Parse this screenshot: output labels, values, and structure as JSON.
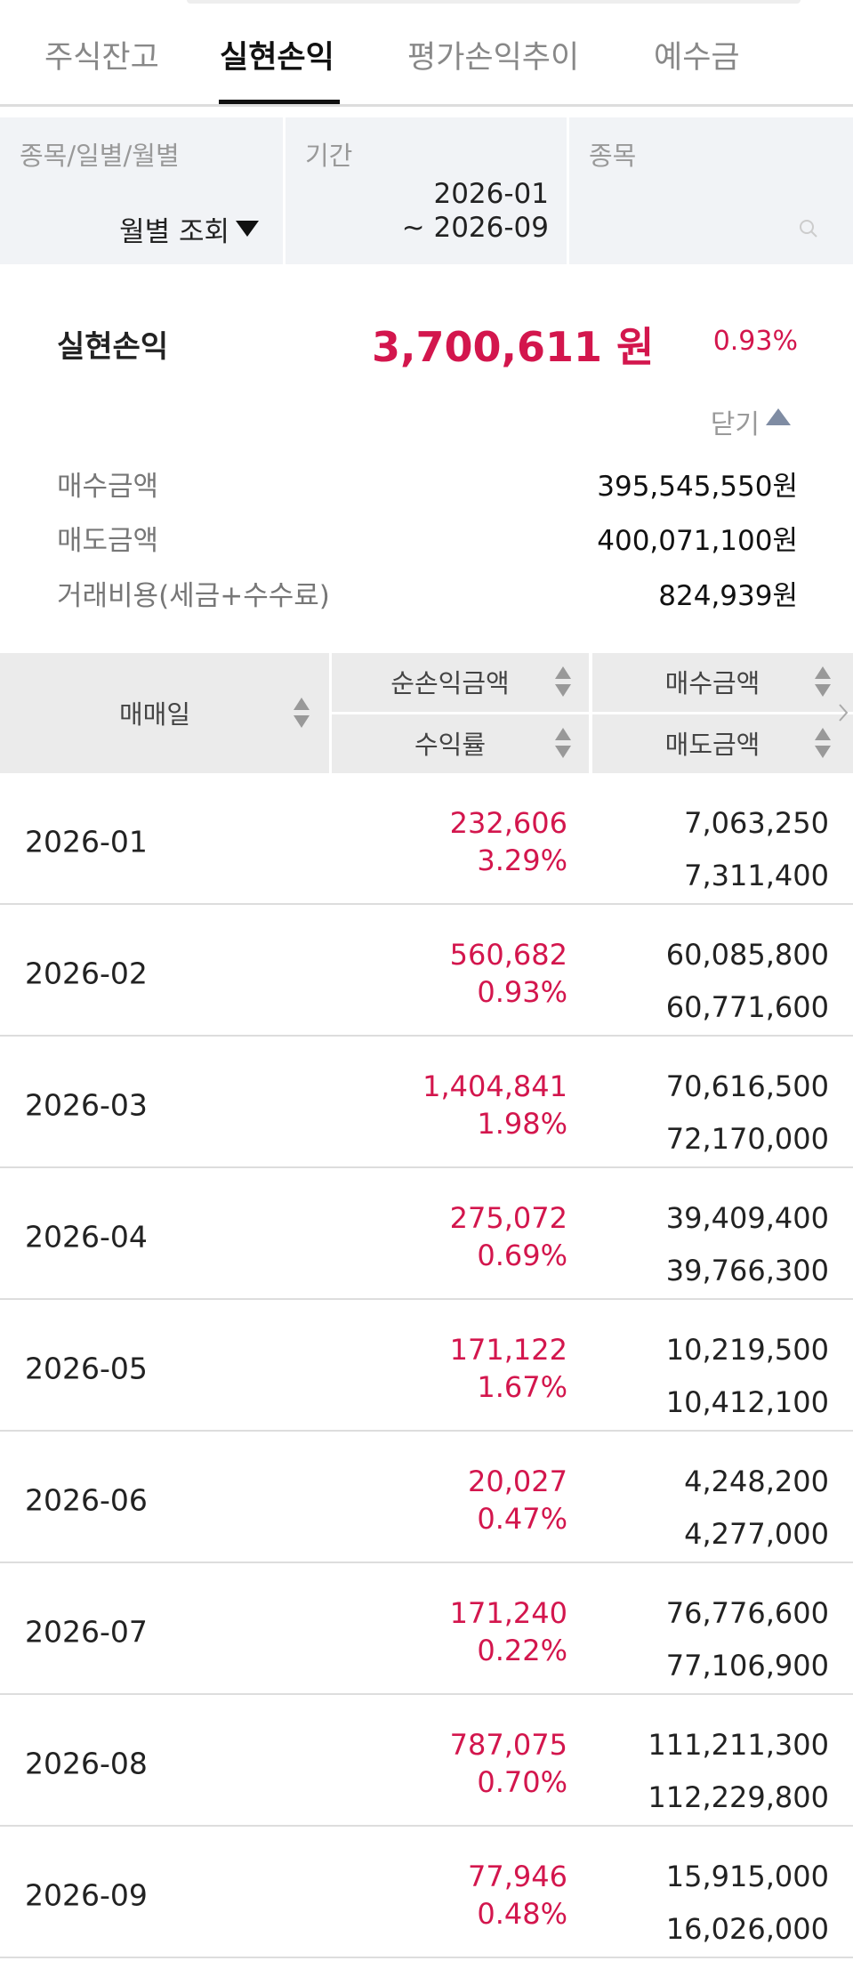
{
  "tabs": [
    "주식잔고",
    "실현손익",
    "평가손익추이",
    "예수금"
  ],
  "filters": {
    "type": {
      "label": "종목/일별/월별",
      "value": "월별 조회"
    },
    "period": {
      "label": "기간",
      "start": "2026-01",
      "end": "~ 2026-09"
    },
    "stock": {
      "label": "종목"
    }
  },
  "summary": {
    "label": "실현손익",
    "amount": "3,700,611 원",
    "rate": "0.93%",
    "toggle": "닫기",
    "details": [
      {
        "label": "매수금액",
        "value": "395,545,550원"
      },
      {
        "label": "매도금액",
        "value": "400,071,100원"
      },
      {
        "label": "거래비용(세금+수수료)",
        "value": "824,939원"
      }
    ]
  },
  "table": {
    "headers": {
      "date": "매매일",
      "profit": "순손익금액",
      "rate": "수익률",
      "buy": "매수금액",
      "sell": "매도금액"
    },
    "rows": [
      [
        "2026-01",
        "232,606",
        "3.29%",
        "7,063,250",
        "7,311,400"
      ],
      [
        "2026-02",
        "560,682",
        "0.93%",
        "60,085,800",
        "60,771,600"
      ],
      [
        "2026-03",
        "1,404,841",
        "1.98%",
        "70,616,500",
        "72,170,000"
      ],
      [
        "2026-04",
        "275,072",
        "0.69%",
        "39,409,400",
        "39,766,300"
      ],
      [
        "2026-05",
        "171,122",
        "1.67%",
        "10,219,500",
        "10,412,100"
      ],
      [
        "2026-06",
        "20,027",
        "0.47%",
        "4,248,200",
        "4,277,000"
      ],
      [
        "2026-07",
        "171,240",
        "0.22%",
        "76,776,600",
        "77,106,900"
      ],
      [
        "2026-08",
        "787,075",
        "0.70%",
        "111,211,300",
        "112,229,800"
      ],
      [
        "2026-09",
        "77,946",
        "0.48%",
        "15,915,000",
        "16,026,000"
      ]
    ]
  }
}
